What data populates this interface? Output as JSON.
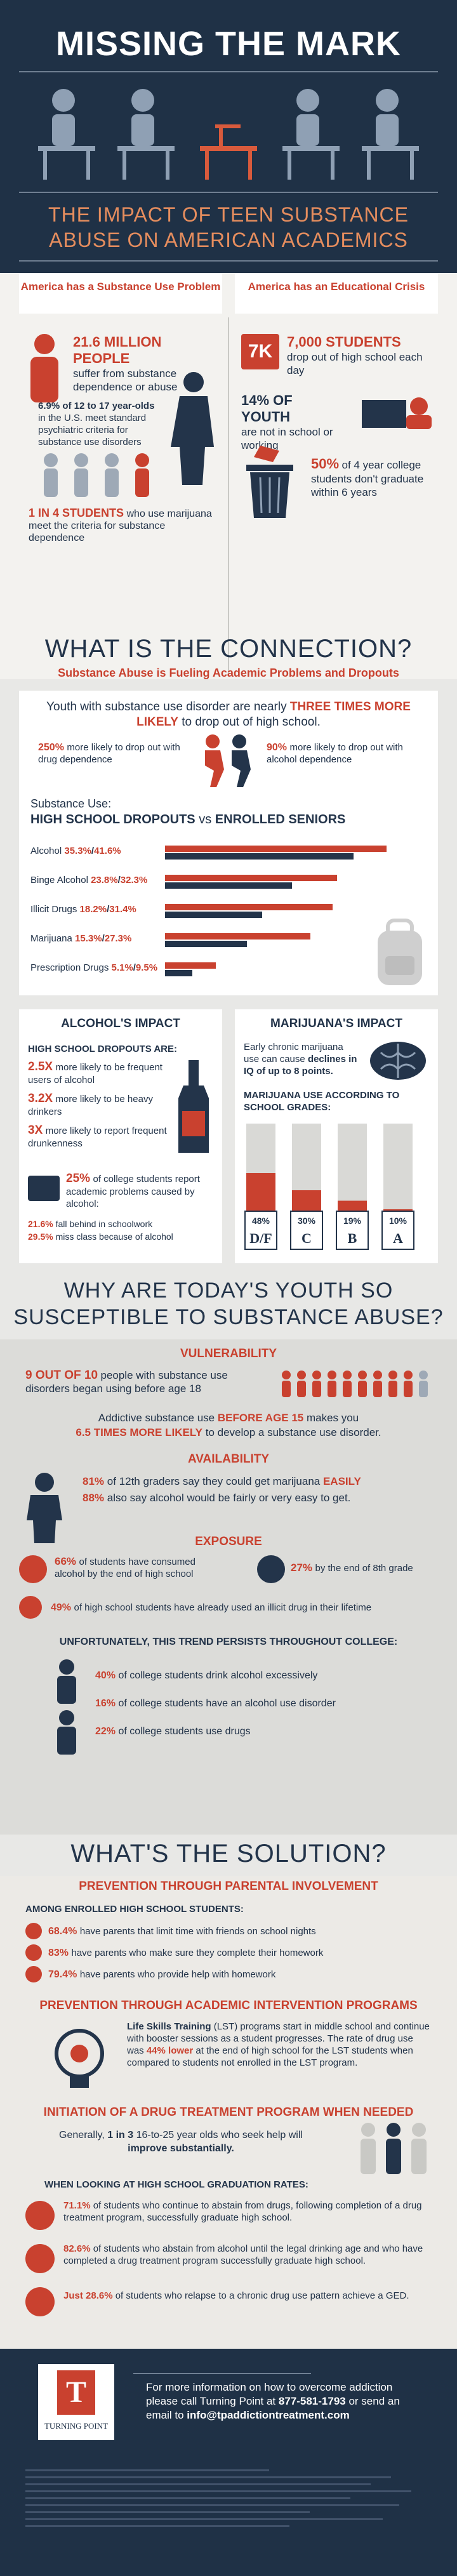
{
  "header": {
    "title": "MISSING THE MARK",
    "subtitle_line1": "THE IMPACT OF TEEN SUBSTANCE",
    "subtitle_line2": "ABUSE ON AMERICAN ACADEMICS"
  },
  "crisis": {
    "left_tab": "America has a Substance Use Problem",
    "right_tab": "America has an Educational Crisis",
    "stat1_big": "21.6 MILLION PEOPLE",
    "stat1_rest": "suffer from substance dependence or abuse",
    "stat2_big": "6.9% of 12 to 17 year-olds",
    "stat2_rest": "in the U.S. meet standard psychiatric criteria for substance use disorders",
    "stat3_big": "1 IN 4 STUDENTS",
    "stat3_rest": "who use marijuana meet the criteria for substance dependence",
    "stat4_badge": "7K",
    "stat4_big": "7,000 STUDENTS",
    "stat4_rest": "drop out of high school each day",
    "stat5_big": "14% OF YOUTH",
    "stat5_rest": "are not in school or working",
    "stat6_big": "50%",
    "stat6_rest": "of 4 year college students don't graduate within 6 years"
  },
  "connection": {
    "title": "WHAT IS THE CONNECTION?",
    "subtitle": "Substance Abuse is Fueling Academic Problems and Dropouts",
    "intro_a": "Youth with substance use disorder are nearly ",
    "intro_b": "THREE TIMES MORE LIKELY",
    "intro_c": " to drop out of high school.",
    "drug_big": "250%",
    "drug_rest": "more likely to drop out with drug dependence",
    "alc_big": "90%",
    "alc_rest": "more likely to drop out with alcohol dependence",
    "use_label": "Substance Use:",
    "legend_a": "HIGH SCHOOL DROPOUTS",
    "legend_vs": "vs",
    "legend_b": "ENROLLED SENIORS"
  },
  "chart_data": {
    "type": "bar",
    "title": "Substance Use: HIGH SCHOOL DROPOUTS vs ENROLLED SENIORS",
    "categories": [
      "Alcohol",
      "Binge Alcohol",
      "Illicit Drugs",
      "Marijuana",
      "Prescription Drugs"
    ],
    "series": [
      {
        "name": "HIGH SCHOOL DROPOUTS",
        "values": [
          35.3,
          23.8,
          18.2,
          15.3,
          5.1
        ],
        "labels": [
          "35.3%",
          "23.8%",
          "18.2%",
          "15.3%",
          "5.1%"
        ],
        "color": "#c9412f"
      },
      {
        "name": "ENROLLED SENIORS",
        "values": [
          41.6,
          32.3,
          31.4,
          27.3,
          9.5
        ],
        "labels": [
          "41.6%",
          "32.3%",
          "31.4%",
          "27.3%",
          "9.5%"
        ],
        "color": "#23344a"
      }
    ]
  },
  "impact": {
    "alcohol_title": "ALCOHOL'S IMPACT",
    "dropouts_are": "HIGH SCHOOL DROPOUTS ARE:",
    "a1_big": "2.5X",
    "a1_rest": "more likely to be frequent users of alcohol",
    "a2_big": "3.2X",
    "a2_rest": "more likely to be heavy drinkers",
    "a3_big": "3X",
    "a3_rest": "more likely to report frequent drunkenness",
    "college_big": "25%",
    "college_rest": "of college students report academic problems caused by alcohol:",
    "fell_big": "21.6%",
    "fell_rest": "fall behind in schoolwork",
    "miss_big": "29.5%",
    "miss_rest": "miss class because of alcohol",
    "mj_title": "MARIJUANA'S IMPACT",
    "mj_text_a": "Early chronic marijuana use can cause ",
    "mj_text_b": "declines in IQ of up to 8 points.",
    "mj_grades_title": "MARIJUANA USE ACCORDING TO SCHOOL GRADES:",
    "grades": [
      {
        "pct": "48%",
        "grade": "D/F",
        "value": 48
      },
      {
        "pct": "30%",
        "grade": "C",
        "value": 30
      },
      {
        "pct": "19%",
        "grade": "B",
        "value": 19
      },
      {
        "pct": "10%",
        "grade": "A",
        "value": 10
      }
    ]
  },
  "why": {
    "title_line1": "WHY ARE TODAY'S YOUTH SO",
    "title_line2": "SUSCEPTIBLE TO SUBSTANCE ABUSE?",
    "vuln": "VULNERABILITY",
    "v1_big": "9 OUT OF 10",
    "v1_rest": "people with substance use disorders began using before age 18",
    "v2_a": "Addictive substance use ",
    "v2_b": "BEFORE AGE 15",
    "v2_c": " makes you",
    "v2_d": "6.5 TIMES MORE LIKELY",
    "v2_e": " to develop a substance use disorder.",
    "avail": "AVAILABILITY",
    "av1_big": "81%",
    "av1_rest": "of 12th graders say they could get marijuana ",
    "av1_end": "EASILY",
    "av2_big": "88%",
    "av2_rest": "also say alcohol would be fairly or very easy to get.",
    "expo": "EXPOSURE",
    "e1_big": "66%",
    "e1_rest": "of students have consumed alcohol by the end of high school",
    "e2_big": "27%",
    "e2_rest": "by the end of 8th grade",
    "e3_big": "49%",
    "e3_rest": "of high school students have already used an illicit drug in their lifetime",
    "persist": "UNFORTUNATELY, THIS TREND PERSISTS THROUGHOUT COLLEGE:",
    "c1_big": "40%",
    "c1_rest": "of college students drink alcohol excessively",
    "c2_big": "16%",
    "c2_rest": "of college students have an alcohol use disorder",
    "c3_big": "22%",
    "c3_rest": "of college students use drugs"
  },
  "solution": {
    "title": "WHAT'S THE SOLUTION?",
    "parental": "PREVENTION THROUGH PARENTAL INVOLVEMENT",
    "among": "AMONG ENROLLED HIGH SCHOOL STUDENTS:",
    "p1_big": "68.4%",
    "p1_rest": "have parents that limit time with friends on school nights",
    "p2_big": "83%",
    "p2_rest": "have parents who make sure they complete their homework",
    "p3_big": "79.4%",
    "p3_rest": "have parents who provide help with homework",
    "academic": "PREVENTION THROUGH ACADEMIC INTERVENTION PROGRAMS",
    "lst_a": "Life Skills Training",
    "lst_b": " (LST) programs start in middle school and continue with booster sessions as a student progresses. The rate of drug use was ",
    "lst_c": "44% lower",
    "lst_d": " at the end of high school for the LST students when compared to students not enrolled in the LST program.",
    "treatment": "INITIATION OF A DRUG TREATMENT PROGRAM WHEN NEEDED",
    "t_a": "Generally, ",
    "t_b": "1 in 3",
    "t_c": " 16-to-25 year olds who seek help will ",
    "t_d": "improve substantially.",
    "grad_title": "WHEN LOOKING AT HIGH SCHOOL GRADUATION RATES:",
    "g1_big": "71.1%",
    "g1_rest": "of students who continue to abstain from drugs, following completion of a drug treatment program, successfully graduate high school.",
    "g2_big": "82.6%",
    "g2_rest": "of students who abstain from alcohol until the legal drinking age and who have completed a drug treatment program successfully graduate high school.",
    "g3_big": "Just 28.6%",
    "g3_rest": "of students who relapse to a chronic drug use pattern achieve a GED."
  },
  "footer": {
    "logo_letter": "T",
    "brand": "TURNING POINT",
    "info_a": "For more information on how to overcome addiction please call Turning Point at ",
    "info_phone": "877-581-1793",
    "info_b": " or send an email to ",
    "info_email": "info@tpaddictiontreatment.com"
  },
  "colors": {
    "navy": "#23344a",
    "red": "#c9412f",
    "orange": "#e58d5e",
    "bg": "#e8e8e6"
  }
}
